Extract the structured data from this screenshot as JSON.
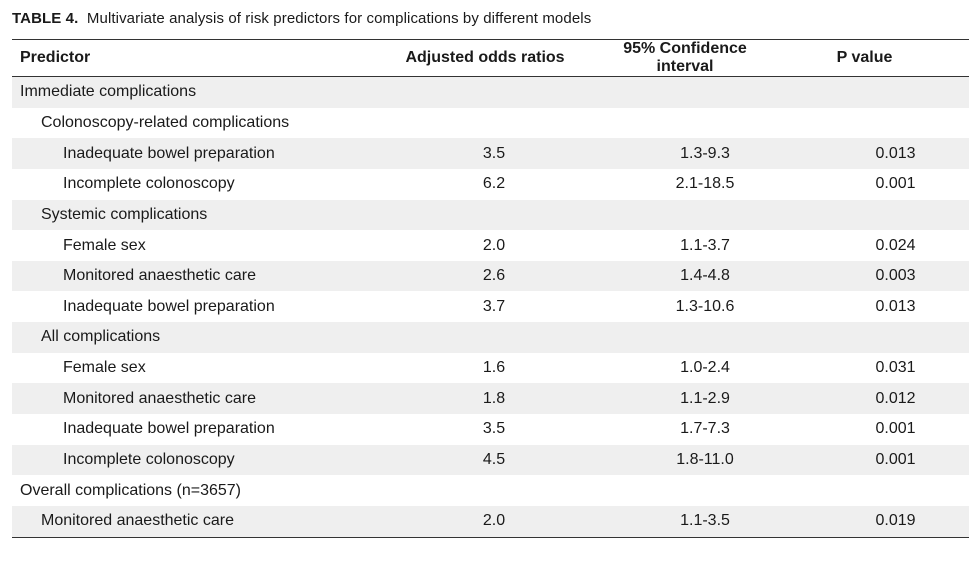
{
  "caption": {
    "label": "TABLE 4.",
    "text": "Multivariate analysis of risk predictors for complications by different models"
  },
  "headers": [
    "Predictor",
    "Adjusted odds ratios",
    "95% Confidence interval",
    "P value"
  ],
  "rows": [
    {
      "predictor": "Immediate complications",
      "level": 0,
      "or": "",
      "ci": "",
      "p": ""
    },
    {
      "predictor": "Colonoscopy-related complications",
      "level": 1,
      "or": "",
      "ci": "",
      "p": ""
    },
    {
      "predictor": "Inadequate bowel preparation",
      "level": 2,
      "or": "3.5",
      "ci": "1.3-9.3",
      "p": "0.013"
    },
    {
      "predictor": "Incomplete colonoscopy",
      "level": 2,
      "or": "6.2",
      "ci": "2.1-18.5",
      "p": "0.001"
    },
    {
      "predictor": "Systemic complications",
      "level": 1,
      "or": "",
      "ci": "",
      "p": ""
    },
    {
      "predictor": "Female sex",
      "level": 2,
      "or": "2.0",
      "ci": "1.1-3.7",
      "p": "0.024"
    },
    {
      "predictor": "Monitored anaesthetic care",
      "level": 2,
      "or": "2.6",
      "ci": "1.4-4.8",
      "p": "0.003"
    },
    {
      "predictor": "Inadequate bowel preparation",
      "level": 2,
      "or": "3.7",
      "ci": "1.3-10.6",
      "p": "0.013"
    },
    {
      "predictor": "All complications",
      "level": 1,
      "or": "",
      "ci": "",
      "p": ""
    },
    {
      "predictor": "Female sex",
      "level": 2,
      "or": "1.6",
      "ci": "1.0-2.4",
      "p": "0.031"
    },
    {
      "predictor": "Monitored anaesthetic care",
      "level": 2,
      "or": "1.8",
      "ci": "1.1-2.9",
      "p": "0.012"
    },
    {
      "predictor": "Inadequate bowel preparation",
      "level": 2,
      "or": "3.5",
      "ci": "1.7-7.3",
      "p": "0.001"
    },
    {
      "predictor": "Incomplete colonoscopy",
      "level": 2,
      "or": "4.5",
      "ci": "1.8-11.0",
      "p": "0.001"
    },
    {
      "predictor": "Overall complications (n=3657)",
      "level": 0,
      "or": "",
      "ci": "",
      "p": ""
    },
    {
      "predictor": "Monitored anaesthetic care",
      "level": 1,
      "or": "2.0",
      "ci": "1.1-3.5",
      "p": "0.019"
    }
  ],
  "colors": {
    "row_shade": "#efefef",
    "rule": "#333333",
    "text": "#1a1a1a"
  }
}
